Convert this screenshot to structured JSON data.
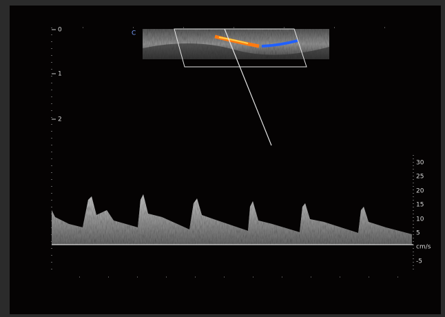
{
  "color_box_label": "C",
  "depth_scale": [
    "0",
    "1",
    "2"
  ],
  "velocity_scale": {
    "labels": [
      "30",
      "25",
      "20",
      "15",
      "10",
      "5",
      "-5"
    ],
    "unit": "cm/s"
  }
}
